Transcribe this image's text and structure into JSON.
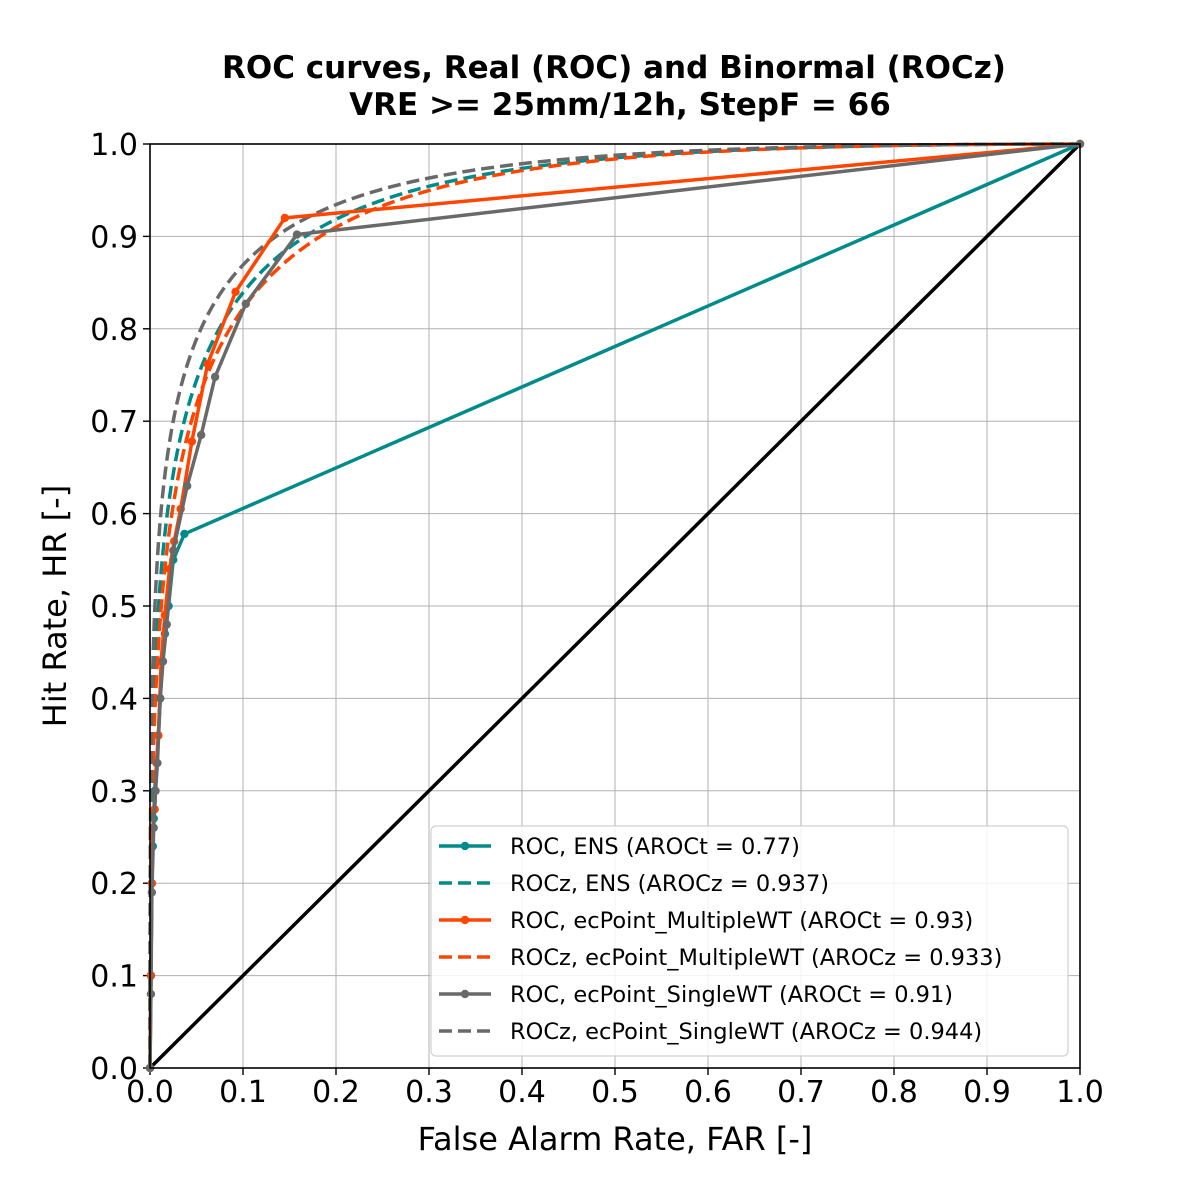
{
  "chart_data": {
    "type": "line",
    "title": "ROC curves, Real (ROC) and Binormal (ROCz)",
    "subtitle": "VRE >= 25mm/12h, StepF = 66",
    "xlabel": "False Alarm Rate, FAR [-]",
    "ylabel": "Hit Rate, HR [-]",
    "xlim": [
      0,
      1
    ],
    "ylim": [
      0,
      1
    ],
    "xticks": [
      "0.0",
      "0.1",
      "0.2",
      "0.3",
      "0.4",
      "0.5",
      "0.6",
      "0.7",
      "0.8",
      "0.9",
      "1.0"
    ],
    "yticks": [
      "0.0",
      "0.1",
      "0.2",
      "0.3",
      "0.4",
      "0.5",
      "0.6",
      "0.7",
      "0.8",
      "0.9",
      "1.0"
    ],
    "grid": true,
    "legend_position": "lower-right",
    "colors": {
      "ens": "#008b8b",
      "multiple": "#ff4500",
      "single": "#696969",
      "diagonal": "#000000"
    },
    "series": [
      {
        "name": "ROC, ENS (AROCt = 0.77)",
        "style": "solid-markers",
        "color": "#008b8b",
        "x": [
          0,
          0.001,
          0.002,
          0.003,
          0.004,
          0.005,
          0.007,
          0.009,
          0.011,
          0.013,
          0.016,
          0.02,
          0.025,
          0.037,
          1.0
        ],
        "y": [
          0,
          0.1,
          0.2,
          0.24,
          0.27,
          0.3,
          0.33,
          0.36,
          0.4,
          0.44,
          0.47,
          0.5,
          0.55,
          0.578,
          1.0
        ]
      },
      {
        "name": "ROCz, ENS (AROCz = 0.937)",
        "style": "dashed",
        "color": "#008b8b",
        "binormal_a": 2.17,
        "binormal_b": 0.92
      },
      {
        "name": "ROC, ecPoint_MultipleWT (AROCt = 0.93)",
        "style": "solid-markers",
        "color": "#ff4500",
        "x": [
          0,
          0.001,
          0.002,
          0.003,
          0.005,
          0.007,
          0.009,
          0.012,
          0.016,
          0.021,
          0.026,
          0.033,
          0.045,
          0.062,
          0.092,
          0.145,
          1.0
        ],
        "y": [
          0,
          0.1,
          0.2,
          0.26,
          0.28,
          0.33,
          0.36,
          0.44,
          0.49,
          0.54,
          0.57,
          0.605,
          0.678,
          0.762,
          0.84,
          0.92,
          1.0
        ]
      },
      {
        "name": "ROCz, ecPoint_MultipleWT (AROCz = 0.933)",
        "style": "dashed",
        "color": "#ff4500",
        "binormal_a": 2.14,
        "binormal_b": 0.95
      },
      {
        "name": "ROC, ecPoint_SingleWT (AROCt = 0.91)",
        "style": "solid-markers",
        "color": "#696969",
        "x": [
          0,
          0.001,
          0.002,
          0.004,
          0.006,
          0.008,
          0.011,
          0.014,
          0.018,
          0.025,
          0.04,
          0.055,
          0.07,
          0.103,
          0.158,
          1.0
        ],
        "y": [
          0,
          0.08,
          0.19,
          0.26,
          0.3,
          0.33,
          0.4,
          0.44,
          0.48,
          0.56,
          0.63,
          0.685,
          0.748,
          0.827,
          0.902,
          1.0
        ]
      },
      {
        "name": "ROCz, ecPoint_SingleWT (AROCz = 0.944)",
        "style": "dashed",
        "color": "#696969",
        "binormal_a": 2.25,
        "binormal_b": 0.88
      }
    ],
    "diagonal": {
      "x": [
        0,
        1
      ],
      "y": [
        0,
        1
      ],
      "color": "#000000"
    }
  }
}
